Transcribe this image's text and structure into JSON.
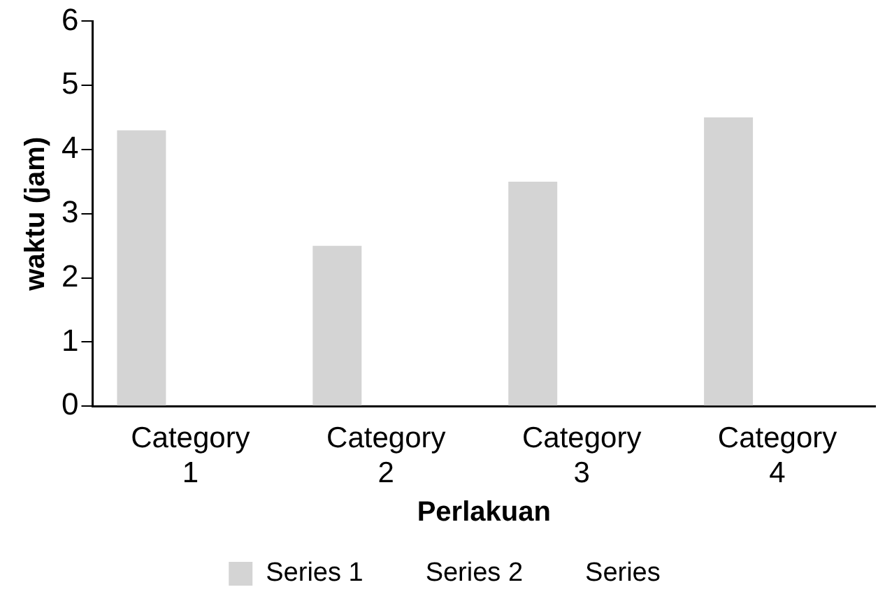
{
  "chart_data": {
    "type": "bar",
    "xlabel": "Perlakuan",
    "ylabel": "waktu (jam)",
    "categories": [
      "Category 1",
      "Category 2",
      "Category 3",
      "Category 4"
    ],
    "series": [
      {
        "name": "Series 1",
        "color": "#d4d4d4",
        "values": [
          4.3,
          2.5,
          3.5,
          4.5
        ]
      },
      {
        "name": "Series 2",
        "values": [
          null,
          null,
          null,
          null
        ]
      },
      {
        "name": "Series",
        "values": [
          null,
          null,
          null,
          null
        ]
      }
    ],
    "ylim": [
      0,
      6
    ],
    "yticks": [
      0,
      1,
      2,
      3,
      4,
      5,
      6
    ],
    "grid": false,
    "legend": "bottom"
  }
}
